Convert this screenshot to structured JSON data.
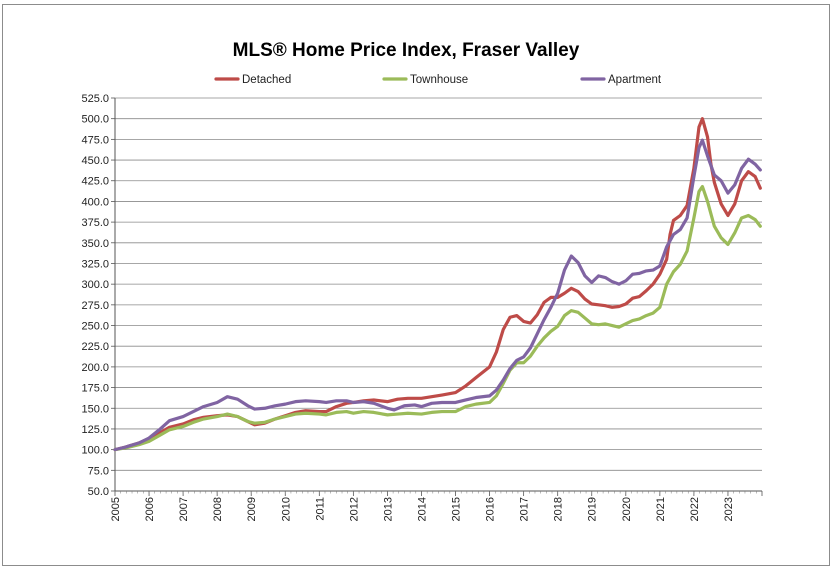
{
  "chart_data": {
    "type": "line",
    "title": "MLS® Home Price Index, Fraser Valley",
    "xlabel": "",
    "ylabel": "",
    "ylim": [
      50,
      525
    ],
    "ytick_step": 25,
    "xlim": [
      2005,
      2024
    ],
    "x_tick_labels": [
      "2005",
      "2006",
      "2007",
      "2008",
      "2009",
      "2010",
      "2011",
      "2012",
      "2013",
      "2014",
      "2015",
      "2016",
      "2017",
      "2018",
      "2019",
      "2020",
      "2021",
      "2022",
      "2023"
    ],
    "y_tick_labels": [
      "50.0",
      "75.0",
      "100.0",
      "125.0",
      "150.0",
      "175.0",
      "200.0",
      "225.0",
      "250.0",
      "275.0",
      "300.0",
      "325.0",
      "350.0",
      "375.0",
      "400.0",
      "425.0",
      "450.0",
      "475.0",
      "500.0",
      "525.0"
    ],
    "grid": "horizontal",
    "legend_position": "top",
    "series": [
      {
        "name": "Detached",
        "color": "#be4b48",
        "points": [
          [
            2005.0,
            100
          ],
          [
            2005.3,
            103
          ],
          [
            2005.7,
            108
          ],
          [
            2006.0,
            113
          ],
          [
            2006.3,
            120
          ],
          [
            2006.6,
            127
          ],
          [
            2007.0,
            131
          ],
          [
            2007.3,
            136
          ],
          [
            2007.6,
            139
          ],
          [
            2008.0,
            141
          ],
          [
            2008.3,
            142
          ],
          [
            2008.6,
            140
          ],
          [
            2008.9,
            134
          ],
          [
            2009.1,
            130
          ],
          [
            2009.4,
            132
          ],
          [
            2009.7,
            137
          ],
          [
            2010.0,
            141
          ],
          [
            2010.3,
            145
          ],
          [
            2010.6,
            147
          ],
          [
            2011.0,
            146
          ],
          [
            2011.2,
            146
          ],
          [
            2011.5,
            152
          ],
          [
            2011.8,
            156
          ],
          [
            2012.0,
            157
          ],
          [
            2012.3,
            159
          ],
          [
            2012.6,
            160
          ],
          [
            2013.0,
            158
          ],
          [
            2013.3,
            161
          ],
          [
            2013.6,
            162
          ],
          [
            2014.0,
            162
          ],
          [
            2014.3,
            164
          ],
          [
            2014.6,
            166
          ],
          [
            2015.0,
            169
          ],
          [
            2015.3,
            177
          ],
          [
            2015.6,
            187
          ],
          [
            2016.0,
            200
          ],
          [
            2016.2,
            218
          ],
          [
            2016.4,
            245
          ],
          [
            2016.6,
            260
          ],
          [
            2016.8,
            262
          ],
          [
            2017.0,
            255
          ],
          [
            2017.2,
            253
          ],
          [
            2017.4,
            263
          ],
          [
            2017.6,
            278
          ],
          [
            2017.8,
            284
          ],
          [
            2018.0,
            284
          ],
          [
            2018.2,
            289
          ],
          [
            2018.4,
            295
          ],
          [
            2018.6,
            291
          ],
          [
            2018.8,
            282
          ],
          [
            2019.0,
            276
          ],
          [
            2019.2,
            275
          ],
          [
            2019.4,
            274
          ],
          [
            2019.6,
            272
          ],
          [
            2019.8,
            273
          ],
          [
            2020.0,
            276
          ],
          [
            2020.2,
            283
          ],
          [
            2020.4,
            285
          ],
          [
            2020.6,
            292
          ],
          [
            2020.8,
            300
          ],
          [
            2021.0,
            312
          ],
          [
            2021.2,
            330
          ],
          [
            2021.3,
            360
          ],
          [
            2021.4,
            377
          ],
          [
            2021.6,
            383
          ],
          [
            2021.8,
            395
          ],
          [
            2022.0,
            440
          ],
          [
            2022.15,
            490
          ],
          [
            2022.25,
            500
          ],
          [
            2022.4,
            478
          ],
          [
            2022.5,
            445
          ],
          [
            2022.6,
            423
          ],
          [
            2022.8,
            397
          ],
          [
            2023.0,
            383
          ],
          [
            2023.2,
            397
          ],
          [
            2023.4,
            425
          ],
          [
            2023.6,
            436
          ],
          [
            2023.8,
            430
          ],
          [
            2023.95,
            416
          ]
        ]
      },
      {
        "name": "Townhouse",
        "color": "#9bbb59",
        "points": [
          [
            2005.0,
            100
          ],
          [
            2005.3,
            102
          ],
          [
            2005.7,
            106
          ],
          [
            2006.0,
            110
          ],
          [
            2006.3,
            117
          ],
          [
            2006.6,
            124
          ],
          [
            2007.0,
            128
          ],
          [
            2007.3,
            133
          ],
          [
            2007.6,
            137
          ],
          [
            2008.0,
            140
          ],
          [
            2008.3,
            143
          ],
          [
            2008.6,
            140
          ],
          [
            2008.9,
            134
          ],
          [
            2009.1,
            132
          ],
          [
            2009.4,
            133
          ],
          [
            2009.7,
            137
          ],
          [
            2010.0,
            140
          ],
          [
            2010.3,
            143
          ],
          [
            2010.6,
            144
          ],
          [
            2011.0,
            143
          ],
          [
            2011.2,
            142
          ],
          [
            2011.5,
            145
          ],
          [
            2011.8,
            146
          ],
          [
            2012.0,
            144
          ],
          [
            2012.3,
            146
          ],
          [
            2012.6,
            145
          ],
          [
            2013.0,
            142
          ],
          [
            2013.3,
            143
          ],
          [
            2013.6,
            144
          ],
          [
            2014.0,
            143
          ],
          [
            2014.3,
            145
          ],
          [
            2014.6,
            146
          ],
          [
            2015.0,
            146
          ],
          [
            2015.3,
            152
          ],
          [
            2015.6,
            155
          ],
          [
            2016.0,
            157
          ],
          [
            2016.2,
            165
          ],
          [
            2016.4,
            180
          ],
          [
            2016.6,
            196
          ],
          [
            2016.8,
            205
          ],
          [
            2017.0,
            205
          ],
          [
            2017.2,
            213
          ],
          [
            2017.4,
            225
          ],
          [
            2017.6,
            235
          ],
          [
            2017.8,
            243
          ],
          [
            2018.0,
            249
          ],
          [
            2018.2,
            262
          ],
          [
            2018.4,
            268
          ],
          [
            2018.6,
            266
          ],
          [
            2018.8,
            259
          ],
          [
            2019.0,
            252
          ],
          [
            2019.2,
            251
          ],
          [
            2019.4,
            252
          ],
          [
            2019.6,
            250
          ],
          [
            2019.8,
            248
          ],
          [
            2020.0,
            252
          ],
          [
            2020.2,
            256
          ],
          [
            2020.4,
            258
          ],
          [
            2020.6,
            262
          ],
          [
            2020.8,
            265
          ],
          [
            2021.0,
            272
          ],
          [
            2021.2,
            300
          ],
          [
            2021.4,
            315
          ],
          [
            2021.6,
            324
          ],
          [
            2021.8,
            340
          ],
          [
            2022.0,
            380
          ],
          [
            2022.15,
            412
          ],
          [
            2022.25,
            418
          ],
          [
            2022.4,
            400
          ],
          [
            2022.6,
            370
          ],
          [
            2022.8,
            356
          ],
          [
            2023.0,
            348
          ],
          [
            2023.2,
            362
          ],
          [
            2023.4,
            380
          ],
          [
            2023.6,
            383
          ],
          [
            2023.8,
            378
          ],
          [
            2023.95,
            370
          ]
        ]
      },
      {
        "name": "Apartment",
        "color": "#8064a2",
        "points": [
          [
            2005.0,
            100
          ],
          [
            2005.3,
            103
          ],
          [
            2005.7,
            108
          ],
          [
            2006.0,
            114
          ],
          [
            2006.3,
            124
          ],
          [
            2006.6,
            135
          ],
          [
            2007.0,
            140
          ],
          [
            2007.3,
            146
          ],
          [
            2007.6,
            152
          ],
          [
            2008.0,
            157
          ],
          [
            2008.3,
            164
          ],
          [
            2008.6,
            161
          ],
          [
            2008.9,
            153
          ],
          [
            2009.1,
            149
          ],
          [
            2009.4,
            150
          ],
          [
            2009.7,
            153
          ],
          [
            2010.0,
            155
          ],
          [
            2010.3,
            158
          ],
          [
            2010.6,
            159
          ],
          [
            2011.0,
            158
          ],
          [
            2011.2,
            157
          ],
          [
            2011.5,
            159
          ],
          [
            2011.8,
            159
          ],
          [
            2012.0,
            157
          ],
          [
            2012.3,
            158
          ],
          [
            2012.6,
            156
          ],
          [
            2013.0,
            150
          ],
          [
            2013.2,
            148
          ],
          [
            2013.5,
            153
          ],
          [
            2013.8,
            154
          ],
          [
            2014.0,
            152
          ],
          [
            2014.3,
            156
          ],
          [
            2014.6,
            157
          ],
          [
            2015.0,
            157
          ],
          [
            2015.3,
            160
          ],
          [
            2015.6,
            163
          ],
          [
            2016.0,
            165
          ],
          [
            2016.2,
            172
          ],
          [
            2016.4,
            184
          ],
          [
            2016.6,
            198
          ],
          [
            2016.8,
            208
          ],
          [
            2017.0,
            212
          ],
          [
            2017.2,
            223
          ],
          [
            2017.4,
            240
          ],
          [
            2017.6,
            257
          ],
          [
            2017.8,
            272
          ],
          [
            2018.0,
            289
          ],
          [
            2018.2,
            317
          ],
          [
            2018.4,
            334
          ],
          [
            2018.6,
            326
          ],
          [
            2018.8,
            310
          ],
          [
            2019.0,
            302
          ],
          [
            2019.2,
            310
          ],
          [
            2019.4,
            308
          ],
          [
            2019.6,
            303
          ],
          [
            2019.8,
            300
          ],
          [
            2020.0,
            304
          ],
          [
            2020.2,
            312
          ],
          [
            2020.4,
            313
          ],
          [
            2020.6,
            316
          ],
          [
            2020.8,
            317
          ],
          [
            2021.0,
            322
          ],
          [
            2021.2,
            345
          ],
          [
            2021.4,
            360
          ],
          [
            2021.6,
            366
          ],
          [
            2021.8,
            380
          ],
          [
            2022.0,
            430
          ],
          [
            2022.15,
            465
          ],
          [
            2022.25,
            474
          ],
          [
            2022.4,
            455
          ],
          [
            2022.6,
            432
          ],
          [
            2022.8,
            425
          ],
          [
            2023.0,
            410
          ],
          [
            2023.2,
            420
          ],
          [
            2023.4,
            440
          ],
          [
            2023.6,
            451
          ],
          [
            2023.8,
            445
          ],
          [
            2023.95,
            438
          ]
        ]
      }
    ]
  }
}
